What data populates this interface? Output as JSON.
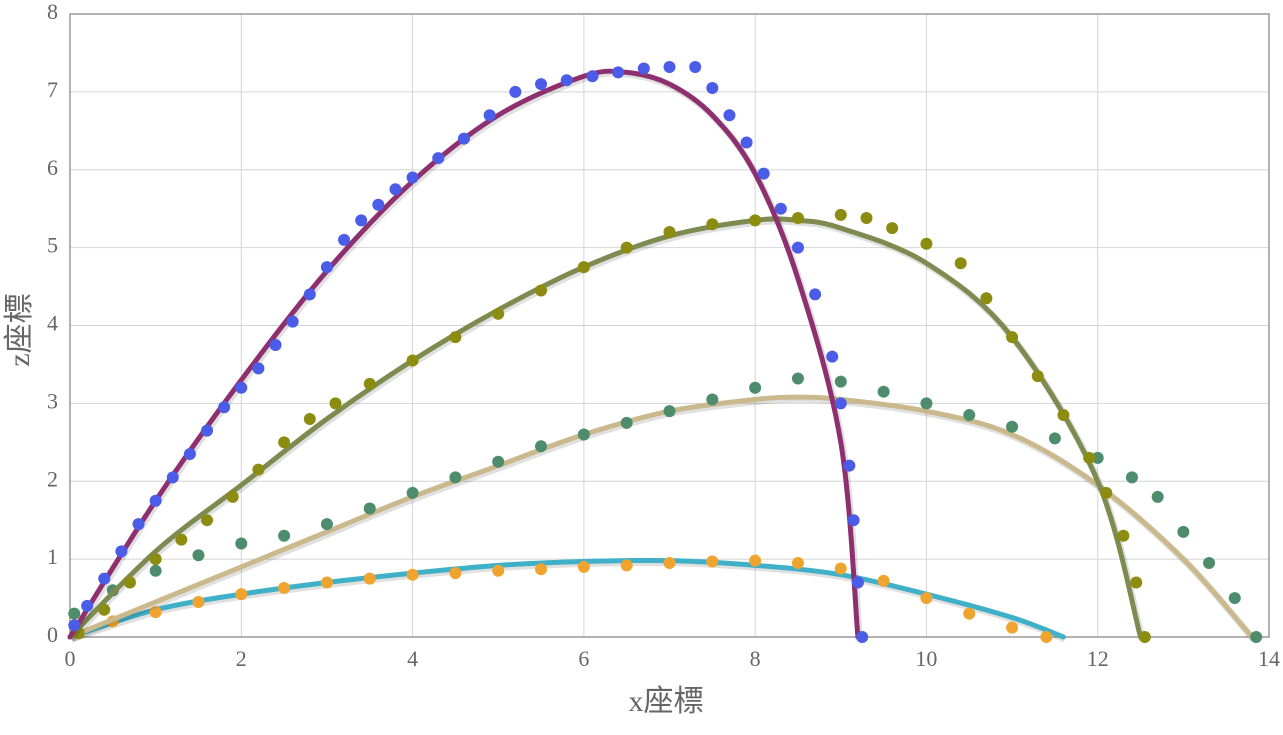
{
  "chart_data": {
    "type": "scatter",
    "x_label": "x座標",
    "y_label": "z座標",
    "xlim": [
      0,
      14
    ],
    "xticks": [
      0,
      2,
      4,
      6,
      8,
      10,
      12,
      14
    ],
    "ylim": [
      0,
      8
    ],
    "yticks": [
      0,
      1,
      2,
      3,
      4,
      5,
      6,
      7,
      8
    ],
    "grid": true,
    "series": [
      {
        "style": "line",
        "color": "#40b0c8",
        "x": [
          0,
          1,
          2,
          3,
          4,
          5,
          6,
          7,
          8,
          9,
          10,
          11,
          11.6
        ],
        "values": [
          0,
          0.35,
          0.55,
          0.7,
          0.82,
          0.92,
          0.97,
          0.98,
          0.92,
          0.8,
          0.55,
          0.25,
          0
        ]
      },
      {
        "style": "dots",
        "color": "#f0a430",
        "x": [
          0.1,
          0.5,
          1,
          1.5,
          2,
          2.5,
          3,
          3.5,
          4,
          4.5,
          5,
          5.5,
          6,
          6.5,
          7,
          7.5,
          8,
          8.5,
          9,
          9.5,
          10,
          10.5,
          11,
          11.4
        ],
        "values": [
          0.05,
          0.2,
          0.32,
          0.45,
          0.55,
          0.63,
          0.7,
          0.75,
          0.8,
          0.82,
          0.85,
          0.87,
          0.9,
          0.92,
          0.95,
          0.97,
          0.98,
          0.95,
          0.88,
          0.72,
          0.5,
          0.3,
          0.12,
          0
        ]
      },
      {
        "style": "line",
        "color": "#c9b98c",
        "x": [
          0,
          1,
          2,
          3,
          4,
          5,
          6,
          7,
          8,
          8.5,
          9,
          10,
          11,
          12,
          13,
          13.8
        ],
        "values": [
          0,
          0.45,
          0.9,
          1.35,
          1.8,
          2.2,
          2.6,
          2.9,
          3.05,
          3.08,
          3.05,
          2.9,
          2.6,
          1.95,
          1.0,
          0
        ]
      },
      {
        "style": "dots",
        "color": "#4d8c6c",
        "x": [
          0.05,
          0.5,
          1,
          1.5,
          2,
          2.5,
          3,
          3.5,
          4,
          4.5,
          5,
          5.5,
          6,
          6.5,
          7,
          7.5,
          8,
          8.5,
          9,
          9.5,
          10,
          10.5,
          11,
          11.5,
          12,
          12.4,
          12.7,
          13,
          13.3,
          13.6,
          13.85
        ],
        "values": [
          0.3,
          0.6,
          0.85,
          1.05,
          1.2,
          1.3,
          1.45,
          1.65,
          1.85,
          2.05,
          2.25,
          2.45,
          2.6,
          2.75,
          2.9,
          3.05,
          3.2,
          3.32,
          3.28,
          3.15,
          3.0,
          2.85,
          2.7,
          2.55,
          2.3,
          2.05,
          1.8,
          1.35,
          0.95,
          0.5,
          0
        ]
      },
      {
        "style": "line",
        "color": "#7d8a50",
        "x": [
          0,
          1,
          2,
          3,
          4,
          5,
          6,
          7,
          8,
          8.5,
          9,
          10,
          11,
          12,
          12.5
        ],
        "values": [
          0,
          1.1,
          1.95,
          2.8,
          3.55,
          4.2,
          4.75,
          5.15,
          5.35,
          5.35,
          5.25,
          4.8,
          3.85,
          2.0,
          0
        ]
      },
      {
        "style": "dots",
        "color": "#8c8c10",
        "x": [
          0.1,
          0.4,
          0.7,
          1,
          1.3,
          1.6,
          1.9,
          2.2,
          2.5,
          2.8,
          3.1,
          3.5,
          4,
          4.5,
          5,
          5.5,
          6,
          6.5,
          7,
          7.5,
          8,
          8.5,
          9,
          9.3,
          9.6,
          10,
          10.4,
          10.7,
          11,
          11.3,
          11.6,
          11.9,
          12.1,
          12.3,
          12.45,
          12.55
        ],
        "values": [
          0.05,
          0.35,
          0.7,
          1.0,
          1.25,
          1.5,
          1.8,
          2.15,
          2.5,
          2.8,
          3.0,
          3.25,
          3.55,
          3.85,
          4.15,
          4.45,
          4.75,
          5.0,
          5.2,
          5.3,
          5.35,
          5.38,
          5.42,
          5.38,
          5.25,
          5.05,
          4.8,
          4.35,
          3.85,
          3.35,
          2.85,
          2.3,
          1.85,
          1.3,
          0.7,
          0
        ]
      },
      {
        "style": "line",
        "color": "#8e3070",
        "x": [
          0,
          1,
          2,
          3,
          4,
          5,
          6,
          6.5,
          7,
          7.5,
          8,
          8.5,
          9,
          9.2
        ],
        "values": [
          0,
          1.75,
          3.3,
          4.7,
          5.85,
          6.7,
          7.2,
          7.25,
          7.1,
          6.7,
          5.95,
          4.6,
          2.5,
          0
        ]
      },
      {
        "style": "dots",
        "color": "#4a5ce8",
        "x": [
          0.05,
          0.2,
          0.4,
          0.6,
          0.8,
          1,
          1.2,
          1.4,
          1.6,
          1.8,
          2,
          2.2,
          2.4,
          2.6,
          2.8,
          3,
          3.2,
          3.4,
          3.6,
          3.8,
          4,
          4.3,
          4.6,
          4.9,
          5.2,
          5.5,
          5.8,
          6.1,
          6.4,
          6.7,
          7,
          7.3,
          7.5,
          7.7,
          7.9,
          8.1,
          8.3,
          8.5,
          8.7,
          8.9,
          9,
          9.1,
          9.15,
          9.2,
          9.25
        ],
        "values": [
          0.15,
          0.4,
          0.75,
          1.1,
          1.45,
          1.75,
          2.05,
          2.35,
          2.65,
          2.95,
          3.2,
          3.45,
          3.75,
          4.05,
          4.4,
          4.75,
          5.1,
          5.35,
          5.55,
          5.75,
          5.9,
          6.15,
          6.4,
          6.7,
          7.0,
          7.1,
          7.15,
          7.2,
          7.25,
          7.3,
          7.32,
          7.32,
          7.05,
          6.7,
          6.35,
          5.95,
          5.5,
          5.0,
          4.4,
          3.6,
          3.0,
          2.2,
          1.5,
          0.7,
          0
        ]
      }
    ]
  }
}
